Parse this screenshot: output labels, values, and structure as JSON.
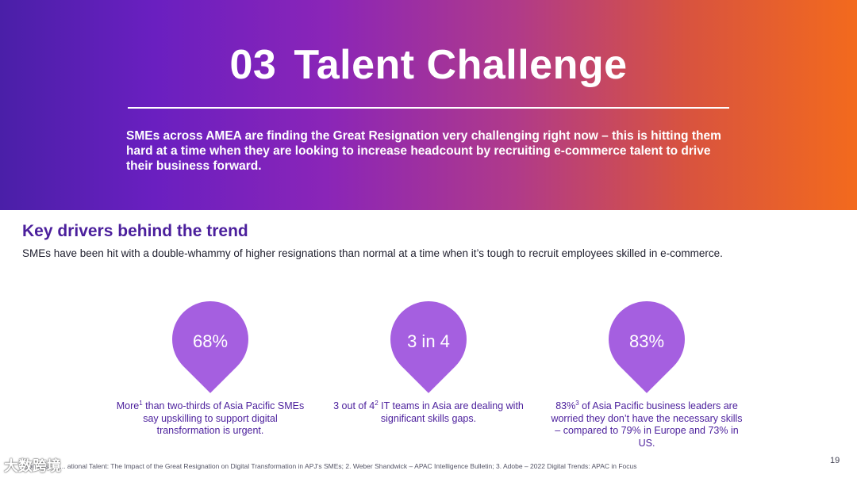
{
  "header": {
    "title_number": "03",
    "title_text": "Talent Challenge",
    "intro": "SMEs across AMEA are finding the Great Resignation very challenging right now – this is hitting them hard at a time when they are looking to increase headcount by recruiting e-commerce talent to drive their business forward."
  },
  "section": {
    "heading": "Key drivers behind the trend",
    "subheading": "SMEs have been hit with a double-whammy of higher resignations than normal at a time when it’s tough to recruit employees skilled in e-commerce."
  },
  "stats": [
    {
      "value": "68%",
      "text_before": "More",
      "sup": "1",
      "text_after": " than two-thirds of Asia Pacific SMEs say upskilling to support digital transformation is urgent."
    },
    {
      "value": "3 in 4",
      "text_before": "3 out of 4",
      "sup": "2",
      "text_after": " IT teams in Asia are dealing with significant skills gaps."
    },
    {
      "value": "83%",
      "text_before": "83%",
      "sup": "3",
      "text_after": " of Asia Pacific business leaders are worried they don’t have the necessary skills – compared to 79% in Europe and 73% in US."
    }
  ],
  "footer": {
    "sources": "Sources: 1. ... ational Talent: The Impact of the Great Resignation on Digital Transformation in APJ’s SMEs; 2. Weber Shandwick – APAC Intelligence Bulletin; 3. Adobe – 2022 Digital Trends: APAC in Focus",
    "page_number": "19",
    "watermark": "大数跨境"
  },
  "colors": {
    "gradient_start": "#4a1fa8",
    "gradient_end": "#f36a1d",
    "accent_purple": "#4b1f9c",
    "pin_fill": "#a55fe0"
  }
}
